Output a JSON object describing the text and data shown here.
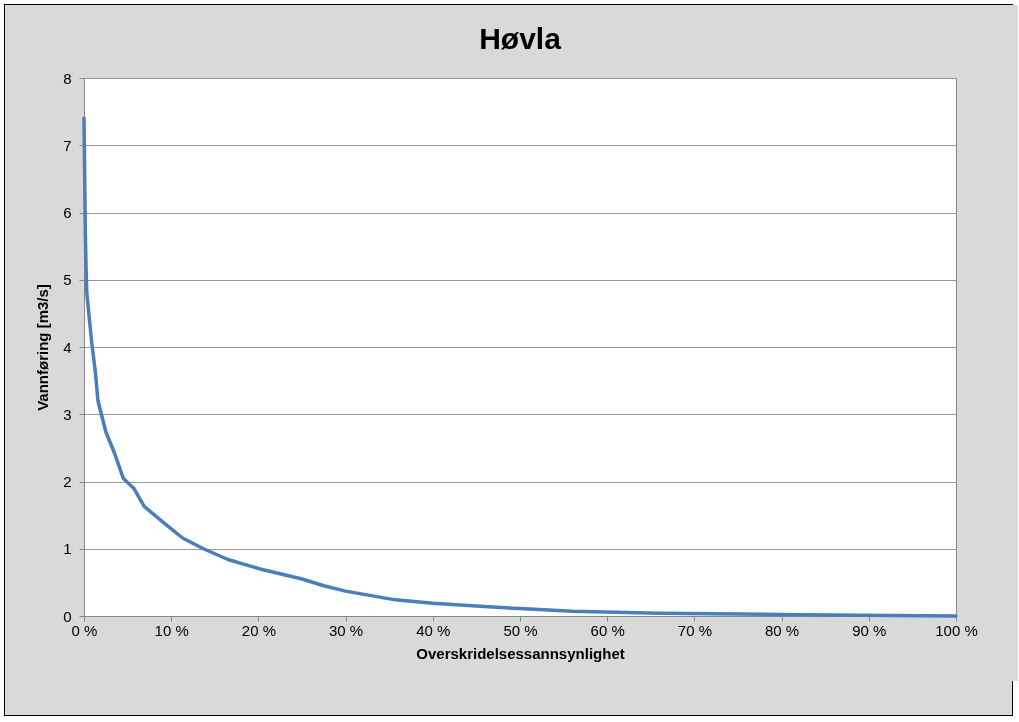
{
  "chart_data": {
    "type": "line",
    "title": "Høvla",
    "xlabel": "Overskridelsessannsynlighet",
    "ylabel": "Vannføring [m3/s]",
    "x": [
      0,
      0.16,
      0.24,
      0.32,
      0.9,
      1.3,
      1.6,
      2.5,
      3.5,
      4.5,
      5.7,
      6.9,
      9.3,
      11.3,
      13.7,
      16.5,
      20.2,
      25,
      27.5,
      30,
      35.7,
      40,
      45.9,
      50,
      56,
      66,
      82,
      100
    ],
    "series": [
      {
        "color": "#4a7ebb",
        "values": [
          7.4,
          5.63,
          5.16,
          4.8,
          4.05,
          3.63,
          3.2,
          2.74,
          2.42,
          2.05,
          1.9,
          1.63,
          1.37,
          1.16,
          1.0,
          0.84,
          0.7,
          0.55,
          0.45,
          0.37,
          0.24,
          0.19,
          0.14,
          0.11,
          0.07,
          0.04,
          0.02,
          0
        ]
      }
    ],
    "xlim": [
      0,
      100
    ],
    "ylim": [
      0,
      8
    ],
    "xticks": [
      {
        "value": 0,
        "label": "0 %"
      },
      {
        "value": 10,
        "label": "10 %"
      },
      {
        "value": 20,
        "label": "20 %"
      },
      {
        "value": 30,
        "label": "30 %"
      },
      {
        "value": 40,
        "label": "40 %"
      },
      {
        "value": 50,
        "label": "50 %"
      },
      {
        "value": 60,
        "label": "60 %"
      },
      {
        "value": 70,
        "label": "70 %"
      },
      {
        "value": 80,
        "label": "80 %"
      },
      {
        "value": 90,
        "label": "90 %"
      },
      {
        "value": 100,
        "label": "100 %"
      }
    ],
    "yticks": [
      0,
      1,
      2,
      3,
      4,
      5,
      6,
      7,
      8
    ],
    "grid": "y",
    "marker": "none",
    "line_style": "solid"
  }
}
